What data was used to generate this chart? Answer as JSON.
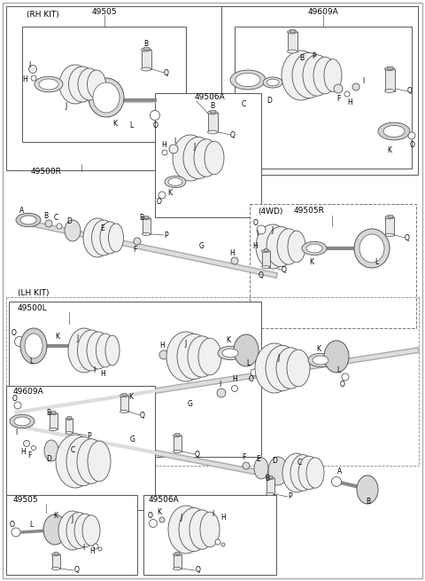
{
  "bg_color": "#ffffff",
  "lc": "#555555",
  "fig_width": 4.8,
  "fig_height": 6.55,
  "dpi": 100,
  "labels": {
    "rh_kit": "(RH KIT)",
    "lh_kit": "(LH KIT)",
    "4wd": "(4WD)",
    "49505_top": "49505",
    "49500R": "49500R",
    "49506A_top": "49506A",
    "49609A_top": "49609A",
    "49505R": "49505R",
    "49500L": "49500L",
    "49609A_bot": "49609A",
    "49505_bot": "49505",
    "49506A_bot": "49506A"
  }
}
